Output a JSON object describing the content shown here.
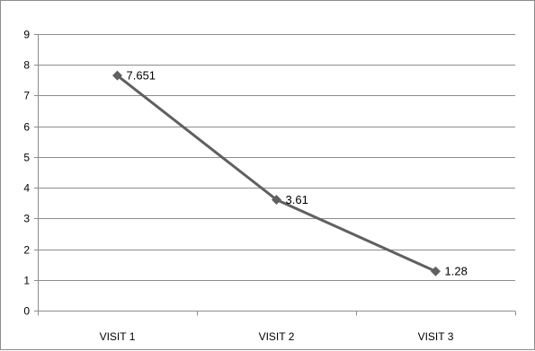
{
  "chart_data": {
    "type": "line",
    "title": "",
    "xlabel": "",
    "ylabel": "",
    "categories": [
      "VISIT 1",
      "VISIT 2",
      "VISIT 3"
    ],
    "series": [
      {
        "values": [
          7.651,
          3.61,
          1.28
        ],
        "data_labels": [
          "7.651",
          "3.61",
          "1.28"
        ],
        "color": "#606060",
        "marker": "diamond"
      }
    ],
    "ylim": [
      0,
      9
    ],
    "y_ticks": [
      "0",
      "1",
      "2",
      "3",
      "4",
      "5",
      "6",
      "7",
      "8",
      "9"
    ],
    "grid": true,
    "legend": "none"
  }
}
